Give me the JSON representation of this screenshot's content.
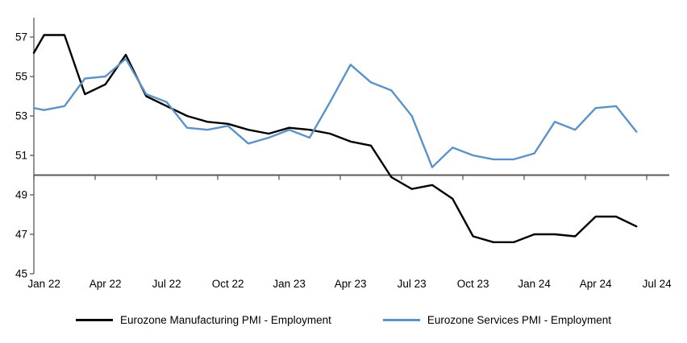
{
  "chart_data": {
    "type": "line",
    "title": "",
    "xlabel": "",
    "ylabel": "",
    "grid": "off",
    "legend_position": "bottom",
    "axis_color": "#595959",
    "text_color": "#000000",
    "ylim": [
      45,
      58
    ],
    "y_ticks": [
      45,
      47,
      49,
      51,
      53,
      55,
      57
    ],
    "baseline_value": 50,
    "x_tick_labels": [
      "Jan 22",
      "Apr 22",
      "Jul 22",
      "Oct 22",
      "Jan 23",
      "Apr 23",
      "Jul 23",
      "Oct 23",
      "Jan 24",
      "Apr 24",
      "Jul 24"
    ],
    "x": [
      "Dec 21",
      "Jan 22",
      "Feb 22",
      "Mar 22",
      "Apr 22",
      "May 22",
      "Jun 22",
      "Jul 22",
      "Aug 22",
      "Sep 22",
      "Oct 22",
      "Nov 22",
      "Dec 22",
      "Jan 23",
      "Feb 23",
      "Mar 23",
      "Apr 23",
      "May 23",
      "Jun 23",
      "Jul 23",
      "Aug 23",
      "Sep 23",
      "Oct 23",
      "Nov 23",
      "Dec 23",
      "Jan 24",
      "Feb 24",
      "Mar 24",
      "Apr 24",
      "May 24",
      "Jun 24"
    ],
    "series": [
      {
        "name": "Eurozone Manufacturing PMI - Employment",
        "color": "#000000",
        "values": [
          56.2,
          57.1,
          57.1,
          54.1,
          54.6,
          56.1,
          54.0,
          53.5,
          53.0,
          52.7,
          52.6,
          52.3,
          52.1,
          52.4,
          52.3,
          52.1,
          51.7,
          51.5,
          49.9,
          49.3,
          49.5,
          48.8,
          46.9,
          46.6,
          46.6,
          47.0,
          47.0,
          46.9,
          47.9,
          47.9,
          47.4
        ]
      },
      {
        "name": "Eurozone Services PMI - Employment",
        "color": "#5B93C8",
        "values": [
          53.4,
          53.3,
          53.5,
          54.9,
          55.0,
          55.9,
          54.1,
          53.7,
          52.4,
          52.3,
          52.5,
          51.6,
          51.9,
          52.3,
          51.9,
          53.7,
          55.6,
          54.7,
          54.3,
          53.0,
          50.4,
          51.4,
          51.0,
          50.8,
          50.8,
          51.1,
          52.7,
          52.3,
          53.4,
          53.5,
          52.2
        ]
      }
    ]
  }
}
